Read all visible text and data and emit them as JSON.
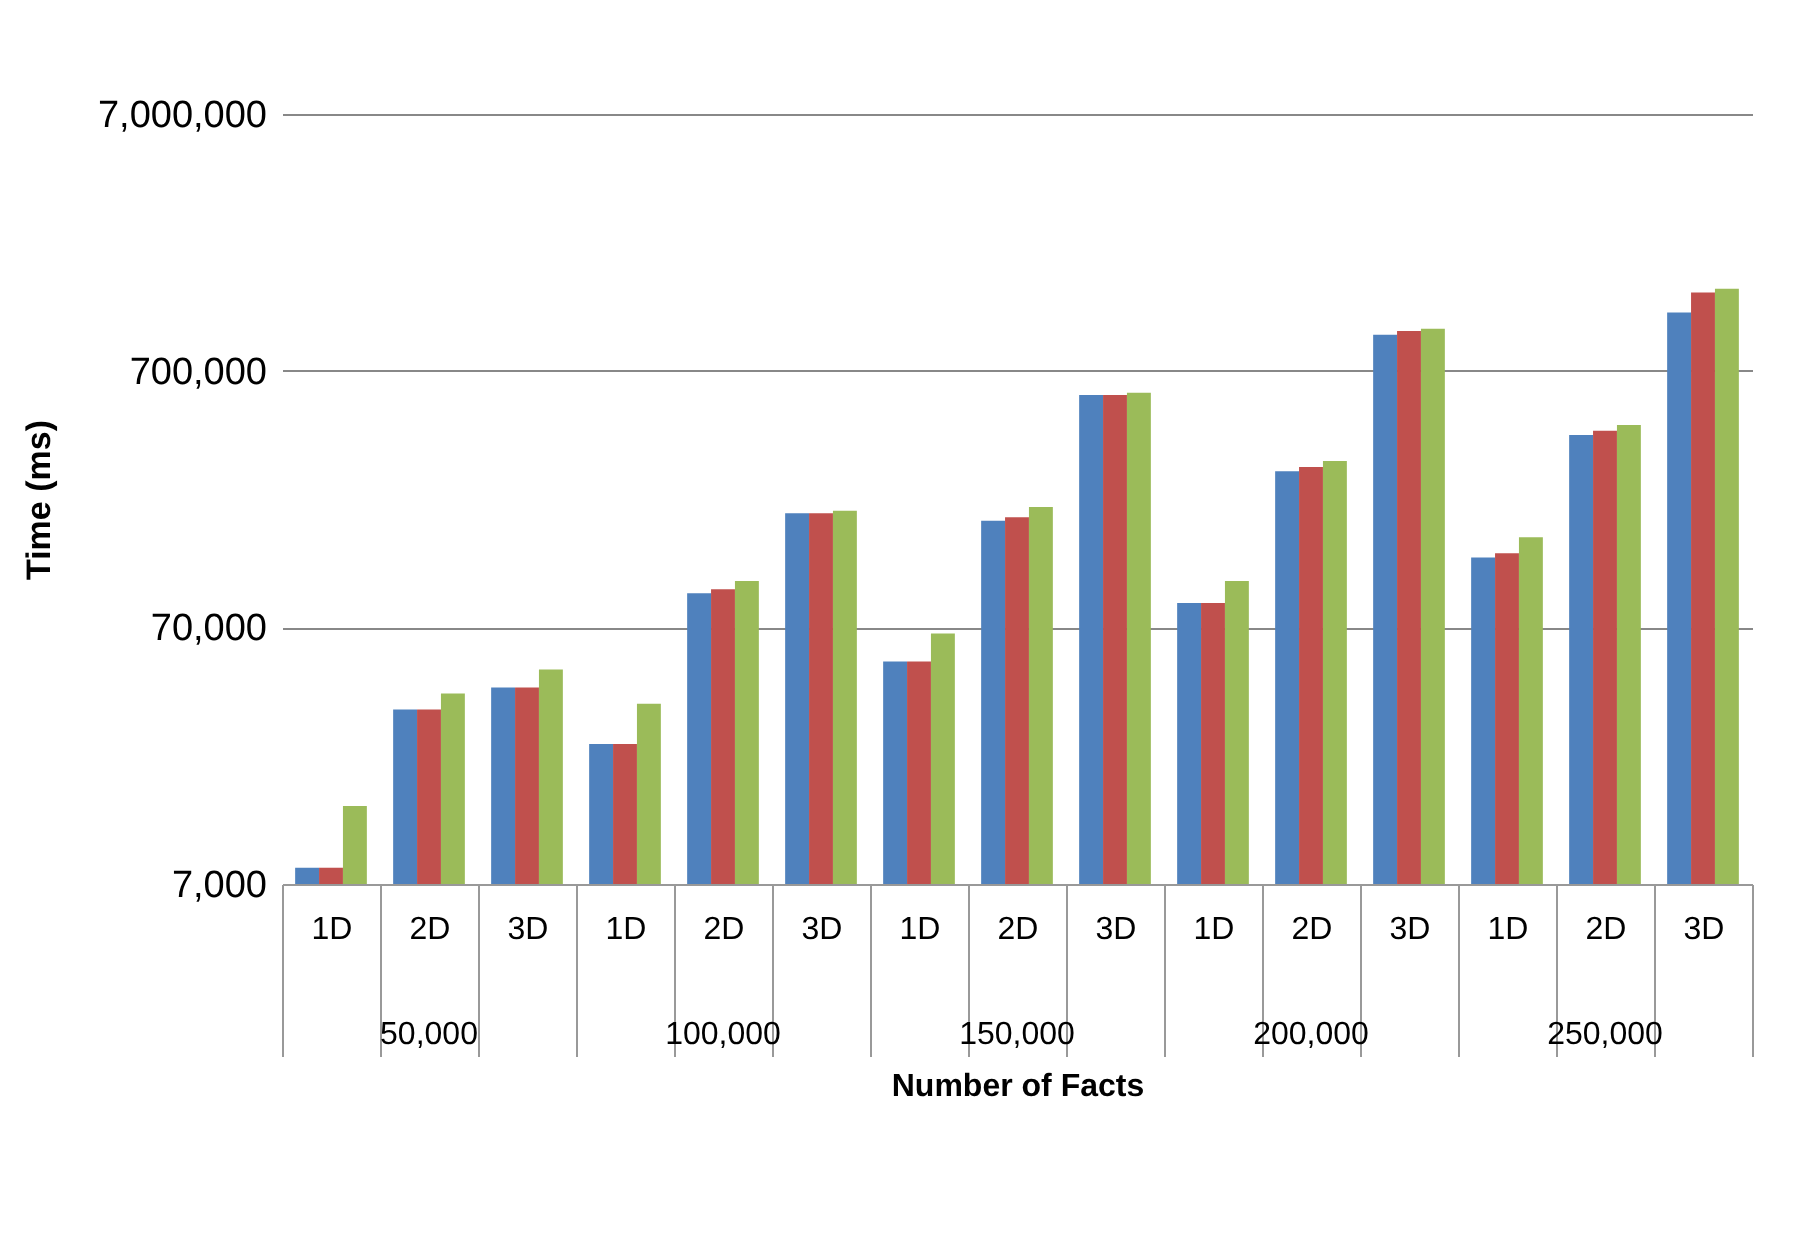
{
  "chart_data": {
    "type": "bar",
    "xlabel": "Number of Facts",
    "ylabel": "Time (ms)",
    "categories": [
      "1D",
      "2D",
      "3D",
      "1D",
      "2D",
      "3D",
      "1D",
      "2D",
      "3D",
      "1D",
      "2D",
      "3D",
      "1D",
      "2D",
      "3D"
    ],
    "annotations": [
      "50,000",
      "100,000",
      "150,000",
      "200,000",
      "250,000"
    ],
    "series": [
      {
        "color": "#4f81bd",
        "values": [
          8100,
          33500,
          40800,
          24600,
          95000,
          195000,
          51500,
          182000,
          563000,
          87000,
          284000,
          966000,
          131000,
          393000,
          1180000
        ]
      },
      {
        "color": "#c0504d",
        "values": [
          8100,
          33500,
          40800,
          24600,
          98500,
          195000,
          51500,
          188000,
          563000,
          87000,
          295000,
          1000000,
          136000,
          408000,
          1410000
        ]
      },
      {
        "color": "#9bbb59",
        "values": [
          14100,
          38700,
          47900,
          35300,
          106000,
          199000,
          66300,
          206000,
          574000,
          106000,
          311000,
          1020000,
          157000,
          430000,
          1460000
        ]
      }
    ],
    "log": true,
    "ylim": [
      7000,
      7000000
    ],
    "yticks": [
      {
        "value": 7000,
        "label": "7,000"
      },
      {
        "value": 70000,
        "label": "70,000"
      },
      {
        "value": 700000,
        "label": "700,000"
      },
      {
        "value": 7000000,
        "label": "7,000,000"
      }
    ],
    "grid": "y",
    "legend": false
  }
}
